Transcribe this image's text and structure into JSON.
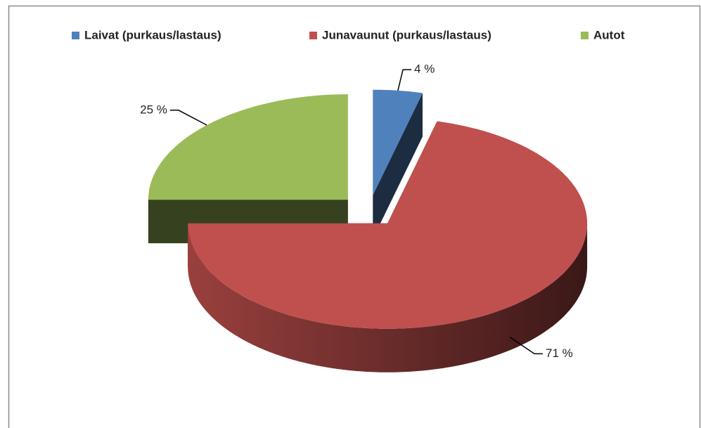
{
  "chart_data": {
    "type": "pie",
    "categories": [
      "Laivat (purkaus/lastaus)",
      "Junavaunut (purkaus/lastaus)",
      "Autot"
    ],
    "values": [
      4,
      71,
      25
    ],
    "value_labels": [
      "4 %",
      "71 %",
      "25 %"
    ],
    "colors": [
      "#4f81bd",
      "#c0504d",
      "#9bbb59"
    ],
    "legend": "top"
  }
}
